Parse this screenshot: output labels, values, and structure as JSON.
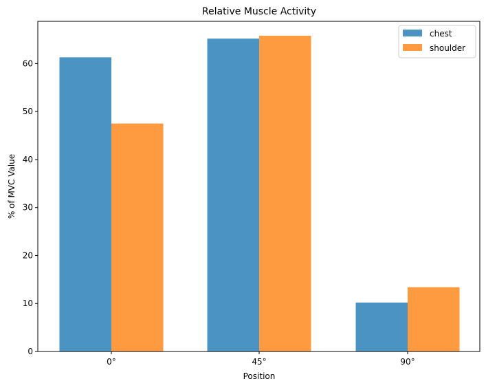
{
  "chart_data": {
    "type": "bar",
    "title": "Relative Muscle Activity",
    "xlabel": "Position",
    "ylabel": "% of MVC Value",
    "categories": [
      "0°",
      "45°",
      "90°"
    ],
    "series": [
      {
        "name": "chest",
        "values": [
          61.3,
          65.2,
          10.2
        ],
        "color": "#4b93c3"
      },
      {
        "name": "shoulder",
        "values": [
          47.5,
          65.8,
          13.4
        ],
        "color": "#fe9a3f"
      }
    ],
    "ylim": [
      0,
      68.8
    ],
    "yticks": [
      0,
      10,
      20,
      30,
      40,
      50,
      60
    ],
    "grid": false,
    "legend_position": "top-right"
  }
}
